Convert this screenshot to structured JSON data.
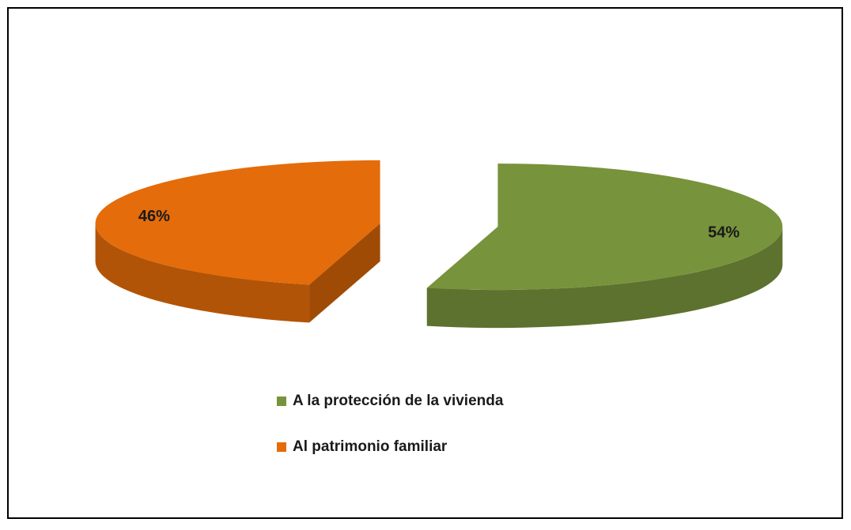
{
  "chart_data": {
    "type": "pie",
    "categories": [
      "A la protección de la vivienda",
      "Al patrimonio familiar"
    ],
    "values": [
      54,
      46
    ],
    "value_labels": [
      "54%",
      "46%"
    ],
    "colors": [
      "#77933c",
      "#e46c0a"
    ]
  }
}
